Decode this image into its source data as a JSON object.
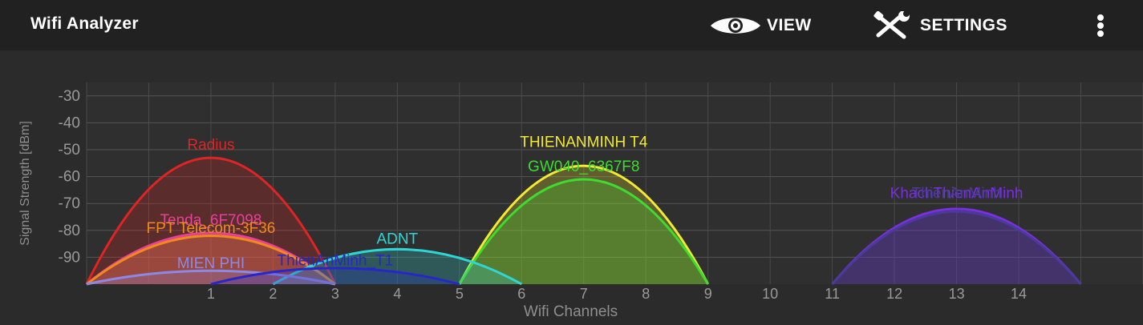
{
  "app": {
    "title": "Wifi Analyzer"
  },
  "toolbar": {
    "view_label": "VIEW",
    "view_icon": "eye-icon",
    "settings_label": "SETTINGS",
    "settings_icon": "wrench-screwdriver-icon",
    "overflow_icon": "more-vertical-icon"
  },
  "chart_data": {
    "type": "area",
    "xlabel": "Wifi Channels",
    "ylabel": "Signal Strength [dBm]",
    "xlim": [
      -1,
      16
    ],
    "ylim": [
      -100,
      -25
    ],
    "x_ticks": [
      1,
      2,
      3,
      4,
      5,
      6,
      7,
      8,
      9,
      10,
      11,
      12,
      13,
      14
    ],
    "y_ticks": [
      -30,
      -40,
      -50,
      -60,
      -70,
      -80,
      -90
    ],
    "grid": true,
    "series": [
      {
        "name": "THIENANMINH T4",
        "channel": 7,
        "level": -56,
        "color": "#f2ea2e",
        "label_y": -49
      },
      {
        "name": "GW040_6367F8",
        "channel": 7,
        "level": -61,
        "color": "#3ddc2e",
        "label_y": -58
      },
      {
        "name": "Radius",
        "channel": 1,
        "level": -53,
        "color": "#e02424",
        "label_y": -50
      },
      {
        "name": "Tenda_6F7098",
        "channel": 1,
        "level": -81,
        "color": "#e8409a",
        "label_y": -78
      },
      {
        "name": "FPT Telecom-3F36",
        "channel": 1,
        "level": -82,
        "color": "#f08a1c",
        "label_y": -81
      },
      {
        "name": "ADNT",
        "channel": 4,
        "level": -87,
        "color": "#2ed6d6",
        "label_y": -85
      },
      {
        "name": "MIEN PHI",
        "channel": 1,
        "level": -95,
        "color": "#8a8ae6",
        "label_y": -94
      },
      {
        "name": "ThienAnMinh_T1",
        "channel": 3,
        "level": -94,
        "color": "#2727c9",
        "label_y": -93
      },
      {
        "name": "KhachThienAnMinh",
        "channel": 13,
        "level": -72,
        "color": "#7a2fe0",
        "label_y": -68
      },
      {
        "name": "ThienAnMinh",
        "channel": 13,
        "level": -73,
        "color": "#4a3a9a",
        "label_y": -68
      }
    ]
  }
}
